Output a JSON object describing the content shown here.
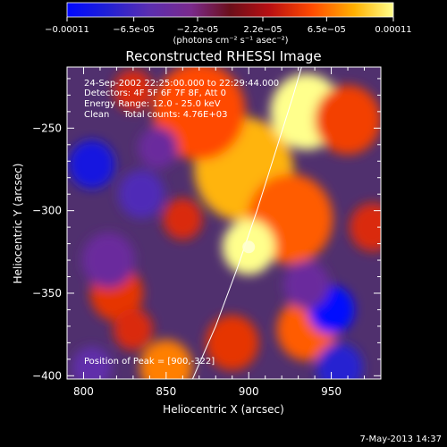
{
  "chart_data": {
    "type": "heatmap",
    "title": "Reconstructed RHESSI Image",
    "xlabel": "Heliocentric X (arcsec)",
    "ylabel": "Heliocentric Y (arcsec)",
    "xlim": [
      790,
      980
    ],
    "ylim": [
      -402,
      -213
    ],
    "x_ticks": [
      800,
      850,
      900,
      950
    ],
    "y_ticks": [
      -250,
      -300,
      -350,
      -400
    ],
    "colorbar": {
      "min": -0.00011,
      "max": 0.00011,
      "ticks": [
        {
          "value": -0.00011,
          "label": "-0.00011"
        },
        {
          "value": -6.5e-05,
          "label": "-6.5e-05"
        },
        {
          "value": -2.2e-05,
          "label": "-2.2e-05"
        },
        {
          "value": 2.2e-05,
          "label": "2.2e-05"
        },
        {
          "value": 6.5e-05,
          "label": "6.5e-05"
        },
        {
          "value": 0.00011,
          "label": "0.00011"
        }
      ],
      "unit_label": "(photons cm⁻² s⁻¹ asec⁻²)"
    },
    "info_lines": [
      "24-Sep-2002 22:25:00.000 to 22:29:44.000",
      "Detectors: 4F 5F 6F 7F 8F, Att 0",
      "Energy Range: 12.0 - 25.0 keV",
      "Clean     Total counts: 4.76E+03"
    ],
    "peak_label": "Position of Peak = [900,-322]",
    "peak": {
      "x": 900,
      "y": -322
    },
    "limb_points": [
      [
        866,
        -402
      ],
      [
        880,
        -370
      ],
      [
        893,
        -335
      ],
      [
        905,
        -300
      ],
      [
        916,
        -265
      ],
      [
        927,
        -230
      ],
      [
        932,
        -213
      ]
    ],
    "sources": [
      {
        "x": 900,
        "y": -322,
        "r": 16,
        "value": 0.00011
      },
      {
        "x": 935,
        "y": -240,
        "r": 22,
        "value": 0.00011
      },
      {
        "x": 897,
        "y": -275,
        "r": 30,
        "value": 8.5e-05
      },
      {
        "x": 925,
        "y": -305,
        "r": 26,
        "value": 6e-05
      },
      {
        "x": 870,
        "y": -240,
        "r": 28,
        "value": 5.5e-05
      },
      {
        "x": 960,
        "y": -245,
        "r": 20,
        "value": 5e-05
      },
      {
        "x": 850,
        "y": -395,
        "r": 16,
        "value": 7e-05
      },
      {
        "x": 935,
        "y": -372,
        "r": 18,
        "value": 6e-05
      },
      {
        "x": 820,
        "y": -350,
        "r": 16,
        "value": 4.5e-05
      },
      {
        "x": 890,
        "y": -380,
        "r": 16,
        "value": 4.5e-05
      },
      {
        "x": 975,
        "y": -310,
        "r": 14,
        "value": 4e-05
      },
      {
        "x": 830,
        "y": -227,
        "r": 12,
        "value": 4e-05
      },
      {
        "x": 860,
        "y": -305,
        "r": 12,
        "value": 4e-05
      },
      {
        "x": 830,
        "y": -372,
        "r": 12,
        "value": 4e-05
      },
      {
        "x": 950,
        "y": -360,
        "r": 14,
        "value": -0.00011
      },
      {
        "x": 805,
        "y": -272,
        "r": 14,
        "value": -9e-05
      },
      {
        "x": 955,
        "y": -395,
        "r": 14,
        "value": -8e-05
      },
      {
        "x": 835,
        "y": -290,
        "r": 14,
        "value": -6e-05
      },
      {
        "x": 815,
        "y": -330,
        "r": 16,
        "value": -4e-05
      },
      {
        "x": 845,
        "y": -262,
        "r": 12,
        "value": -4e-05
      },
      {
        "x": 935,
        "y": -345,
        "r": 14,
        "value": -4e-05
      },
      {
        "x": 805,
        "y": -395,
        "r": 12,
        "value": -5e-05
      }
    ]
  },
  "footer": {
    "timestamp": "7-May-2013 14:37"
  }
}
